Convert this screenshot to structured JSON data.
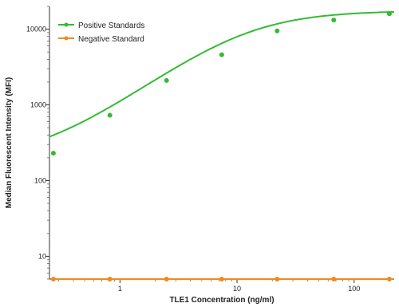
{
  "chart_data": {
    "type": "scatter",
    "title": "",
    "xlabel": "TLE1 Concentration (ng/ml)",
    "ylabel": "Median Fluorescent Intensity (MFI)",
    "x_scale": "log",
    "y_scale": "log",
    "xlim": [
      0.25,
      220
    ],
    "ylim": [
      5,
      20000
    ],
    "x_ticks": [
      {
        "value": 1,
        "label": "1"
      },
      {
        "value": 10,
        "label": "10"
      },
      {
        "value": 100,
        "label": "100"
      }
    ],
    "y_ticks": [
      {
        "value": 10,
        "label": "10"
      },
      {
        "value": 100,
        "label": "100"
      },
      {
        "value": 1000,
        "label": "1000"
      },
      {
        "value": 10000,
        "label": "10000"
      }
    ],
    "legend_position": "top-left",
    "series": [
      {
        "name": "Positive Standards",
        "color": "#33bb33",
        "x": [
          0.27,
          0.82,
          2.5,
          7.4,
          22,
          67,
          200
        ],
        "y": [
          230,
          730,
          2100,
          4600,
          9500,
          13200,
          16000
        ],
        "fit": "sigmoid"
      },
      {
        "name": "Negative Standard",
        "color": "#f08a1c",
        "x": [
          0.27,
          0.82,
          2.5,
          7.4,
          22,
          67,
          200
        ],
        "y": [
          5,
          5,
          5,
          5,
          5,
          5,
          5
        ],
        "fit": "line"
      }
    ]
  }
}
